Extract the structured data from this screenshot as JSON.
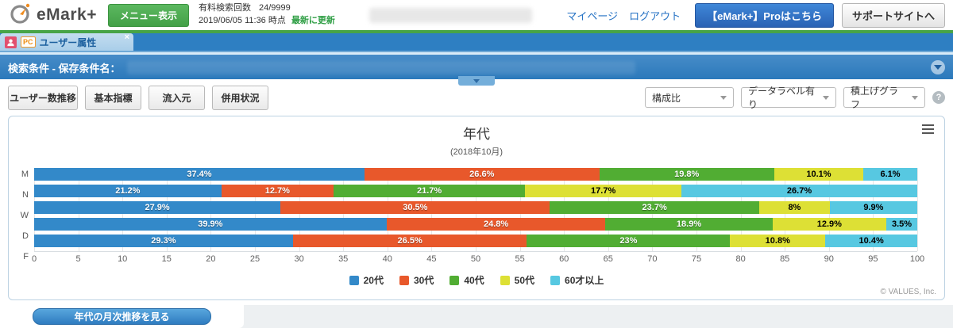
{
  "header": {
    "logo_text": "eMark+",
    "menu_button": "メニュー表示",
    "search_count_label": "有料検索回数",
    "search_count_value": "24/9999",
    "timestamp": "2019/06/05 11:36 時点",
    "refresh_link": "最新に更新",
    "mypage_link": "マイページ",
    "logout_link": "ログアウト",
    "pro_button": "【eMark+】Proはこちら",
    "support_button": "サポートサイトへ"
  },
  "tab": {
    "device_badge": "PC",
    "label": "ユーザー属性",
    "close": "×"
  },
  "condition_bar": {
    "label": "検索条件 - 保存条件名："
  },
  "toolbar": {
    "buttons": [
      {
        "label": "ユーザー数推移"
      },
      {
        "label": "基本指標"
      },
      {
        "label": "流入元"
      },
      {
        "label": "併用状況"
      }
    ],
    "selects": [
      {
        "value": "構成比"
      },
      {
        "value": "データラベル有り"
      },
      {
        "value": "積上げグラフ"
      }
    ],
    "help_icon": "?"
  },
  "chart_data": {
    "type": "bar",
    "stacked": true,
    "orientation": "horizontal",
    "title": "年代",
    "subtitle": "(2018年10月)",
    "categories": [
      "M",
      "N",
      "W",
      "D",
      "F"
    ],
    "series": [
      {
        "name": "20代",
        "color": "#3389c9",
        "label_color": "#ffffff",
        "values": [
          37.4,
          21.2,
          27.9,
          39.9,
          29.3
        ]
      },
      {
        "name": "30代",
        "color": "#e8582b",
        "label_color": "#ffffff",
        "values": [
          26.6,
          12.7,
          30.5,
          24.8,
          26.5
        ]
      },
      {
        "name": "40代",
        "color": "#51ad33",
        "label_color": "#ffffff",
        "values": [
          19.8,
          21.7,
          23.7,
          18.9,
          23
        ]
      },
      {
        "name": "50代",
        "color": "#dde035",
        "label_color": "#000000",
        "values": [
          10.1,
          17.7,
          8,
          12.9,
          10.8
        ]
      },
      {
        "name": "60才以上",
        "color": "#57c8e1",
        "label_color": "#000000",
        "values": [
          6.1,
          26.7,
          9.9,
          3.5,
          10.4
        ]
      }
    ],
    "xlim": [
      0,
      100
    ],
    "xticks": [
      0,
      5,
      10,
      15,
      20,
      25,
      30,
      35,
      40,
      45,
      50,
      55,
      60,
      65,
      70,
      75,
      80,
      85,
      90,
      95,
      100
    ],
    "grid": true,
    "legend_position": "bottom",
    "data_labels": "percent"
  },
  "chart_footer": {
    "copyright": "© VALUES, Inc."
  },
  "footer": {
    "monthly_button": "年代の月次推移を見る"
  },
  "colors": {
    "header_green": "#47a447",
    "bar_blue": "#2e7fc2",
    "link_blue": "#2572c4"
  }
}
